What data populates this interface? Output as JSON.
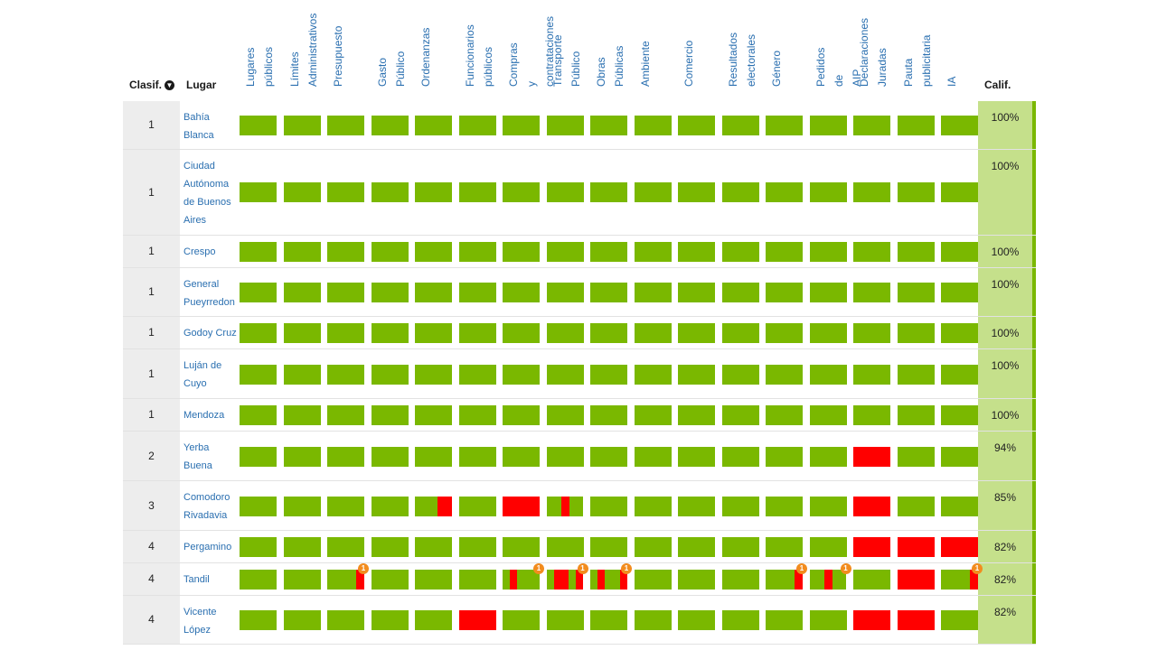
{
  "header": {
    "rank_label": "Clasif.",
    "place_label": "Lugar",
    "grade_label": "Calif."
  },
  "columns": [
    {
      "lines": [
        "Lugares",
        "públicos"
      ]
    },
    {
      "lines": [
        "Límites",
        "Administrativos"
      ]
    },
    {
      "lines": [
        "Presupuesto"
      ]
    },
    {
      "lines": [
        "Gasto",
        "Público"
      ]
    },
    {
      "lines": [
        "Ordenanzas"
      ]
    },
    {
      "lines": [
        "Funcionarios",
        "públicos"
      ]
    },
    {
      "lines": [
        "Compras",
        "y",
        "contrataciones"
      ]
    },
    {
      "lines": [
        "Transporte",
        "Público"
      ]
    },
    {
      "lines": [
        "Obras",
        "Públicas"
      ]
    },
    {
      "lines": [
        "Ambiente"
      ]
    },
    {
      "lines": [
        "Comercio"
      ]
    },
    {
      "lines": [
        "Resultados",
        "electorales"
      ]
    },
    {
      "lines": [
        "Género"
      ]
    },
    {
      "lines": [
        "Pedidos",
        "de",
        "AIP"
      ]
    },
    {
      "lines": [
        "Declaraciones",
        "Juradas"
      ]
    },
    {
      "lines": [
        "Pauta",
        "publicitaria"
      ]
    },
    {
      "lines": [
        "IA"
      ]
    }
  ],
  "colors": {
    "ok": "#7ab800",
    "fail": "#ff0000",
    "badge": "#f28c1e"
  },
  "rows": [
    {
      "rank": "1",
      "place": "Bahía Blanca",
      "grade": "100%",
      "cells": [
        "G",
        "G",
        "G",
        "G",
        "G",
        "G",
        "G",
        "G",
        "G",
        "G",
        "G",
        "G",
        "G",
        "G",
        "G",
        "G",
        "G"
      ]
    },
    {
      "rank": "1",
      "place": "Ciudad Autónoma de Buenos Aires",
      "grade": "100%",
      "cells": [
        "G",
        "G",
        "G",
        "G",
        "G",
        "G",
        "G",
        "G",
        "G",
        "G",
        "G",
        "G",
        "G",
        "G",
        "G",
        "G",
        "G"
      ]
    },
    {
      "rank": "1",
      "place": "Crespo",
      "grade": "100%",
      "cells": [
        "G",
        "G",
        "G",
        "G",
        "G",
        "G",
        "G",
        "G",
        "G",
        "G",
        "G",
        "G",
        "G",
        "G",
        "G",
        "G",
        "G"
      ]
    },
    {
      "rank": "1",
      "place": "General Pueyrredon",
      "grade": "100%",
      "cells": [
        "G",
        "G",
        "G",
        "G",
        "G",
        "G",
        "G",
        "G",
        "G",
        "G",
        "G",
        "G",
        "G",
        "G",
        "G",
        "G",
        "G"
      ]
    },
    {
      "rank": "1",
      "place": "Godoy Cruz",
      "grade": "100%",
      "cells": [
        "G",
        "G",
        "G",
        "G",
        "G",
        "G",
        "G",
        "G",
        "G",
        "G",
        "G",
        "G",
        "G",
        "G",
        "G",
        "G",
        "G"
      ]
    },
    {
      "rank": "1",
      "place": "Luján de Cuyo",
      "grade": "100%",
      "cells": [
        "G",
        "G",
        "G",
        "G",
        "G",
        "G",
        "G",
        "G",
        "G",
        "G",
        "G",
        "G",
        "G",
        "G",
        "G",
        "G",
        "G"
      ]
    },
    {
      "rank": "1",
      "place": "Mendoza",
      "grade": "100%",
      "cells": [
        "G",
        "G",
        "G",
        "G",
        "G",
        "G",
        "G",
        "G",
        "G",
        "G",
        "G",
        "G",
        "G",
        "G",
        "G",
        "G",
        "G"
      ]
    },
    {
      "rank": "2",
      "place": "Yerba Buena",
      "grade": "94%",
      "cells": [
        "G",
        "G",
        "G",
        "G",
        "G",
        "G",
        "G",
        "G",
        "G",
        "G",
        "G",
        "G",
        "G",
        "G",
        "R",
        "G",
        "G"
      ]
    },
    {
      "rank": "3",
      "place": "Comodoro Rivadavia",
      "grade": "85%",
      "cells": [
        "G",
        "G",
        "G",
        "G",
        "P1",
        "G",
        "R",
        "P2",
        "G",
        "G",
        "G",
        "G",
        "G",
        "G",
        "R",
        "G",
        "G"
      ]
    },
    {
      "rank": "4",
      "place": "Pergamino",
      "grade": "82%",
      "cells": [
        "G",
        "G",
        "G",
        "G",
        "G",
        "G",
        "G",
        "G",
        "G",
        "G",
        "G",
        "G",
        "G",
        "G",
        "R",
        "R",
        "R"
      ]
    },
    {
      "rank": "4",
      "place": "Tandil",
      "grade": "82%",
      "cells": [
        "G",
        "G",
        "T1",
        "G",
        "G",
        "G",
        "T2",
        "T3",
        "T4",
        "G",
        "G",
        "G",
        "T1",
        "T5",
        "G",
        "R",
        "T1"
      ]
    },
    {
      "rank": "4",
      "place": "Vicente López",
      "grade": "82%",
      "cells": [
        "G",
        "G",
        "G",
        "G",
        "G",
        "R",
        "G",
        "G",
        "G",
        "G",
        "G",
        "G",
        "G",
        "G",
        "R",
        "R",
        "G"
      ]
    }
  ],
  "badge_text": "1"
}
